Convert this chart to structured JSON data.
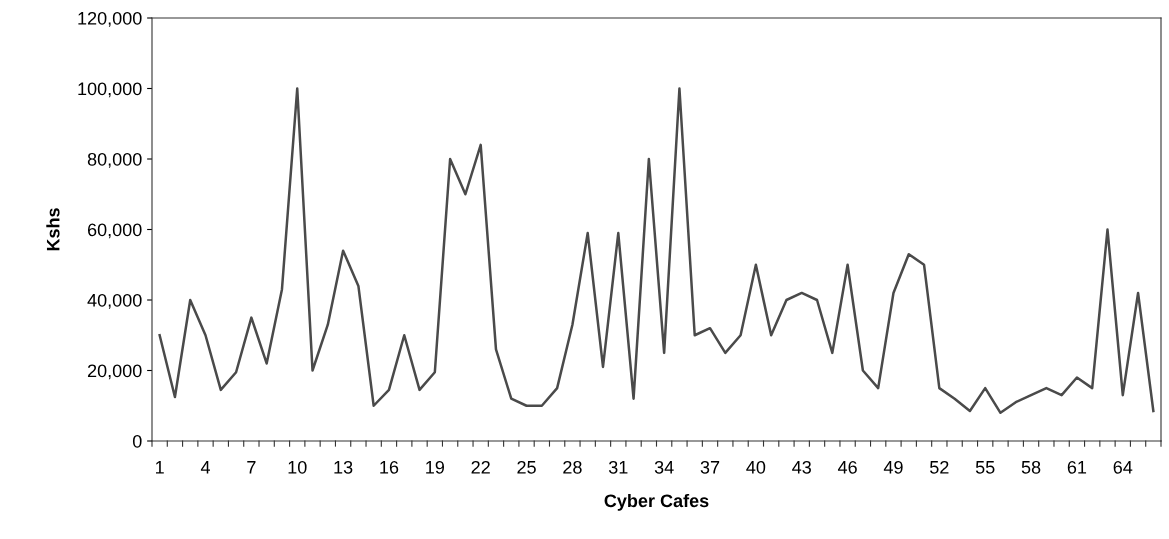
{
  "chart_data": {
    "type": "line",
    "xlabel": "Cyber Cafes",
    "ylabel": "Kshs",
    "categories": [
      "1",
      null,
      null,
      "4",
      null,
      null,
      "7",
      null,
      null,
      "10",
      null,
      null,
      "13",
      null,
      null,
      "16",
      null,
      null,
      "19",
      null,
      null,
      "22",
      null,
      null,
      "25",
      null,
      null,
      "28",
      null,
      null,
      "31",
      null,
      null,
      "34",
      null,
      null,
      "37",
      null,
      null,
      "40",
      null,
      null,
      "43",
      null,
      null,
      "46",
      null,
      null,
      "49",
      null,
      null,
      "52",
      null,
      null,
      "55",
      null,
      null,
      "58",
      null,
      null,
      "61",
      null,
      null,
      "64",
      null,
      null
    ],
    "series": [
      {
        "color": "#4a4a4a",
        "values": [
          30000,
          12500,
          40000,
          30000,
          14500,
          19500,
          35000,
          22000,
          43000,
          100000,
          20000,
          33000,
          54000,
          44000,
          10000,
          14500,
          30000,
          14500,
          19500,
          80000,
          70000,
          84000,
          26000,
          12000,
          10000,
          10000,
          15000,
          33000,
          59000,
          21000,
          59000,
          12000,
          80000,
          25000,
          100000,
          30000,
          32000,
          25000,
          30000,
          50000,
          30000,
          40000,
          42000,
          40000,
          25000,
          50000,
          20000,
          15000,
          42000,
          53000,
          50000,
          15000,
          12000,
          8500,
          15000,
          8000,
          11000,
          13000,
          15000,
          13000,
          18000,
          15000,
          60000,
          13000,
          42000,
          8500
        ]
      }
    ],
    "ylim": [
      0,
      120000
    ],
    "yticks": [
      0,
      {
        "value": 20000,
        "label": "20,000"
      },
      {
        "value": 40000,
        "label": "40,000"
      },
      {
        "value": 60000,
        "label": "60,000"
      },
      {
        "value": 80000,
        "label": "80,000"
      },
      {
        "value": 100000,
        "label": "100,000"
      },
      {
        "value": 120000,
        "label": "120,000"
      }
    ],
    "grid": false,
    "legend": false,
    "marker": "none",
    "line_style": "solid"
  }
}
